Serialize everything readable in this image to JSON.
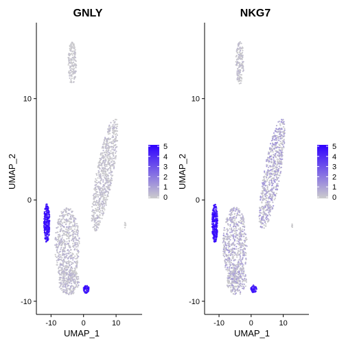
{
  "chart_data": [
    {
      "type": "scatter",
      "title": "GNLY",
      "xlabel": "UMAP_1",
      "ylabel": "UMAP_2",
      "xlim": [
        -14.5,
        18
      ],
      "ylim": [
        -11.3,
        17.5
      ],
      "xticks": [
        -10,
        0,
        10
      ],
      "yticks": [
        -10,
        0,
        10
      ],
      "color_scale": {
        "low": "#cccccc",
        "high": "#2f00ff",
        "min": 0,
        "max": 5,
        "labels": [
          "5",
          "4",
          "3",
          "2",
          "1",
          "0"
        ]
      },
      "clusters": [
        {
          "name": "top-island",
          "cx": -3.5,
          "cy": 13.5,
          "rx": 1.3,
          "ry": 2.1,
          "n": 160,
          "expr": [
            0,
            0.4
          ]
        },
        {
          "name": "right-band",
          "cx": 6.5,
          "cy": 2.5,
          "rx": 2.6,
          "ry": 5.6,
          "n": 700,
          "expr": [
            0,
            0.6
          ],
          "tilt": 0.55
        },
        {
          "name": "left-large",
          "cx": -5,
          "cy": -4.5,
          "rx": 3.8,
          "ry": 3.8,
          "n": 600,
          "expr": [
            0,
            0.8
          ]
        },
        {
          "name": "left-bottom",
          "cx": -4.5,
          "cy": -8.0,
          "rx": 3.2,
          "ry": 1.4,
          "n": 220,
          "expr": [
            0,
            0.8
          ]
        },
        {
          "name": "nk-blue",
          "cx": -11.3,
          "cy": -2.3,
          "rx": 0.9,
          "ry": 1.9,
          "n": 260,
          "expr": [
            3.5,
            5
          ]
        },
        {
          "name": "small-blue",
          "cx": 0.8,
          "cy": -8.8,
          "rx": 0.9,
          "ry": 0.4,
          "n": 60,
          "expr": [
            3.5,
            5
          ]
        },
        {
          "name": "dot-right",
          "cx": 12.8,
          "cy": -2.5,
          "rx": 0.2,
          "ry": 0.3,
          "n": 8,
          "expr": [
            0,
            0.2
          ]
        }
      ]
    },
    {
      "type": "scatter",
      "title": "NKG7",
      "xlabel": "UMAP_1",
      "ylabel": "UMAP_2",
      "xlim": [
        -14.5,
        18
      ],
      "ylim": [
        -11.3,
        17.5
      ],
      "xticks": [
        -10,
        0,
        10
      ],
      "yticks": [
        -10,
        0,
        10
      ],
      "color_scale": {
        "low": "#cccccc",
        "high": "#2f00ff",
        "min": 0,
        "max": 5,
        "labels": [
          "5",
          "4",
          "3",
          "2",
          "1",
          "0"
        ]
      },
      "clusters": [
        {
          "name": "top-island",
          "cx": -3.5,
          "cy": 13.5,
          "rx": 1.3,
          "ry": 2.1,
          "n": 160,
          "expr": [
            0,
            0.6
          ]
        },
        {
          "name": "right-band",
          "cx": 6.5,
          "cy": 2.5,
          "rx": 2.6,
          "ry": 5.6,
          "n": 700,
          "expr": [
            0,
            1.6
          ],
          "tilt": 0.55
        },
        {
          "name": "left-large",
          "cx": -5,
          "cy": -4.5,
          "rx": 3.8,
          "ry": 3.8,
          "n": 600,
          "expr": [
            0,
            1.4
          ]
        },
        {
          "name": "left-bottom",
          "cx": -4.5,
          "cy": -8.0,
          "rx": 3.2,
          "ry": 1.4,
          "n": 220,
          "expr": [
            0,
            1.2
          ]
        },
        {
          "name": "nk-blue",
          "cx": -11.3,
          "cy": -2.3,
          "rx": 0.9,
          "ry": 1.9,
          "n": 260,
          "expr": [
            3.5,
            5
          ]
        },
        {
          "name": "small-blue",
          "cx": 0.8,
          "cy": -8.8,
          "rx": 0.9,
          "ry": 0.4,
          "n": 60,
          "expr": [
            3.5,
            5
          ]
        },
        {
          "name": "dot-right",
          "cx": 12.8,
          "cy": -2.5,
          "rx": 0.2,
          "ry": 0.3,
          "n": 8,
          "expr": [
            0,
            0.2
          ]
        }
      ]
    }
  ]
}
